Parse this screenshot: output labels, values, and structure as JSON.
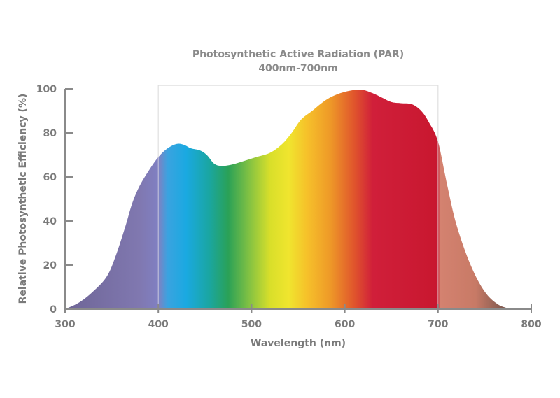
{
  "chart_data": {
    "type": "area",
    "title": "Photosynthetic Active Radiation (PAR)",
    "subtitle": "400nm-700nm",
    "xlabel": "Wavelength (nm)",
    "ylabel": "Relative Photosynthetic Efficiency (%)",
    "xlim": [
      300,
      800
    ],
    "ylim": [
      0,
      100
    ],
    "xticks": [
      300,
      400,
      500,
      600,
      700,
      800
    ],
    "yticks": [
      0,
      20,
      40,
      60,
      80,
      100
    ],
    "grid": false,
    "highlight_range": [
      400,
      700
    ],
    "x": [
      300,
      315,
      330,
      345,
      355,
      365,
      372,
      380,
      390,
      400,
      410,
      420,
      428,
      435,
      445,
      452,
      460,
      468,
      478,
      490,
      505,
      520,
      533,
      543,
      553,
      565,
      580,
      595,
      610,
      620,
      630,
      640,
      650,
      660,
      672,
      682,
      690,
      700,
      710,
      720,
      735,
      750,
      765,
      780
    ],
    "y": [
      0,
      3,
      8,
      15,
      25,
      38,
      48,
      56,
      63,
      69,
      73,
      75,
      74.5,
      73,
      72,
      70,
      66,
      65,
      65.5,
      67,
      69,
      71,
      75,
      80,
      86,
      90,
      95,
      98,
      99.5,
      99.5,
      98,
      96,
      94,
      93.5,
      93,
      90,
      85,
      76,
      56,
      38,
      20,
      8,
      2,
      0
    ],
    "spectrum_colors": [
      {
        "nm": 300,
        "color": "#6e6596"
      },
      {
        "nm": 380,
        "color": "#8078b0"
      },
      {
        "nm": 400,
        "color": "#8080c2"
      },
      {
        "nm": 410,
        "color": "#3aa3e0"
      },
      {
        "nm": 430,
        "color": "#1aa9e1"
      },
      {
        "nm": 455,
        "color": "#1aa6a0"
      },
      {
        "nm": 475,
        "color": "#2aa157"
      },
      {
        "nm": 500,
        "color": "#8cc540"
      },
      {
        "nm": 520,
        "color": "#d9df2a"
      },
      {
        "nm": 540,
        "color": "#f0e52e"
      },
      {
        "nm": 560,
        "color": "#f6c02a"
      },
      {
        "nm": 585,
        "color": "#ee9828"
      },
      {
        "nm": 610,
        "color": "#e0552c"
      },
      {
        "nm": 630,
        "color": "#d01f3a"
      },
      {
        "nm": 700,
        "color": "#c8172f"
      },
      {
        "nm": 702,
        "color": "#d48270"
      },
      {
        "nm": 740,
        "color": "#c87a66"
      },
      {
        "nm": 780,
        "color": "#6a4f48"
      }
    ],
    "colors": {
      "axis": "#8a8a8a",
      "frame": "#d0d0d0",
      "text": "#7a7a7a"
    }
  }
}
